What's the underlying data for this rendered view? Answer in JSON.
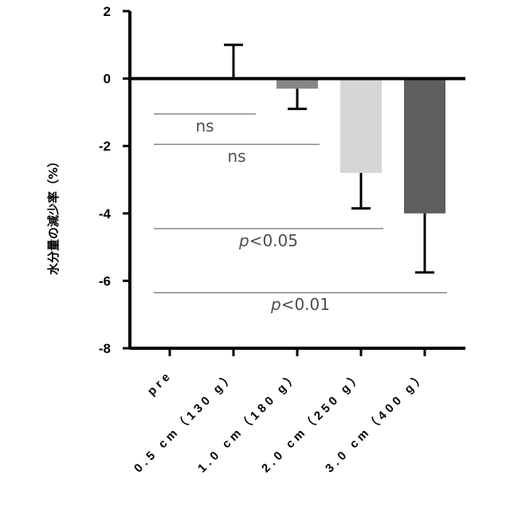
{
  "chart_data": {
    "type": "bar",
    "categories": [
      "pre",
      "0.5 cm（130 g）",
      "1.0 cm（180 g）",
      "2.0 cm（250 g）",
      "3.0 cm（400 g）"
    ],
    "values": [
      0,
      0,
      -0.3,
      -2.8,
      -4.0
    ],
    "errors": [
      0,
      1.0,
      0.6,
      1.05,
      1.75
    ],
    "bar_colors": [
      "#ffffff",
      "#ffffff",
      "#878787",
      "#d6d6d6",
      "#5e5e5e"
    ],
    "ylabel": "水分量の減少率（%）",
    "xlabel": "",
    "ylim": [
      -8,
      2
    ],
    "yticks": [
      2,
      0,
      -2,
      -4,
      -6,
      -8
    ],
    "grid": false,
    "annotations": [
      {
        "from": 0,
        "to": 1,
        "y": -1.05,
        "prefix": "",
        "label": "ns"
      },
      {
        "from": 0,
        "to": 2,
        "y": -1.95,
        "prefix": "",
        "label": "ns"
      },
      {
        "from": 0,
        "to": 3,
        "y": -4.45,
        "prefix": "p",
        "label": "<0.05"
      },
      {
        "from": 0,
        "to": 4,
        "y": -6.35,
        "prefix": "p",
        "label": "<0.01"
      }
    ]
  }
}
